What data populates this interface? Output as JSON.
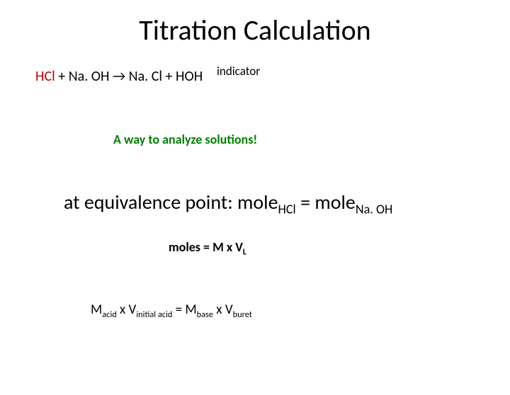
{
  "title": "Titration Calculation",
  "equation": {
    "reactant1": "HCl",
    "plus1": " + ",
    "reactant2": "Na. OH",
    "arrow": "    →    ",
    "product1": "Na. Cl",
    "plus2": " + ",
    "product2": "HOH"
  },
  "indicator_label": "indicator",
  "analyze_text": "A way to analyze solutions!",
  "equivalence": {
    "prefix": "at equivalence point: mole",
    "sub1": "HCl",
    "mid": " = mole",
    "sub2": "Na. OH"
  },
  "moles": {
    "text": "moles = M x V",
    "sub": "L"
  },
  "macid": {
    "m1": "M",
    "s1": "acid",
    "x1": " x V",
    "s2": "initial acid",
    "eq": " = M",
    "s3": "base",
    "x2": " x V",
    "s4": "buret"
  },
  "colors": {
    "red": "#c00000",
    "green": "#008000",
    "black": "#000000",
    "background": "#ffffff"
  },
  "fonts": {
    "title_size": 40,
    "body_size": 20,
    "equiv_size": 28
  }
}
